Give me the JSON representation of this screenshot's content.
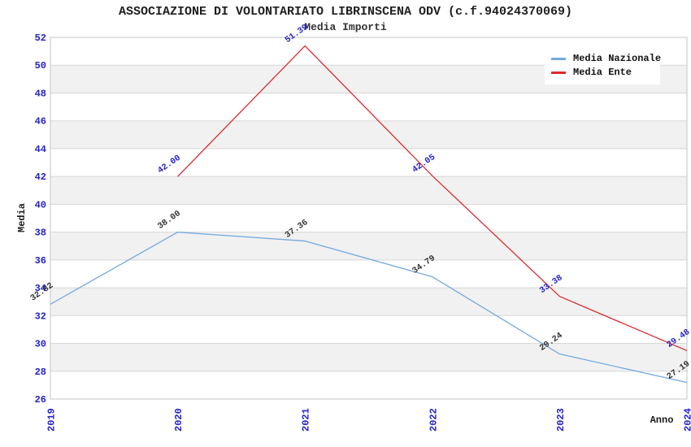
{
  "chart_data": {
    "type": "line",
    "title": "ASSOCIAZIONE DI VOLONTARIATO LIBRINSCENA ODV (c.f.94024370069)",
    "subtitle": "Media Importi",
    "xlabel": "Anno",
    "ylabel": "Media",
    "x_categories": [
      2019,
      2020,
      2021,
      2022,
      2023,
      2024
    ],
    "ylim": [
      26,
      52
    ],
    "ytick_step": 2,
    "grid": "horizontal-bands",
    "legend_position": "top-right",
    "axis_tick_color": "#2222cc",
    "band_colors": [
      "#ffffff",
      "#f1f1f1"
    ],
    "gridline_color": "#d7d7d7",
    "plot_border_color": "#c6c6c6",
    "series": [
      {
        "name": "Media Nazionale",
        "color": "#74a9de",
        "label_color": "#333333",
        "x": [
          2019,
          2020,
          2021,
          2022,
          2023,
          2024
        ],
        "values": [
          32.82,
          38.0,
          37.36,
          34.79,
          29.24,
          27.19
        ],
        "labels": [
          "32.82",
          "38.00",
          "37.36",
          "34.79",
          "29.24",
          "27.19"
        ]
      },
      {
        "name": "Media Ente",
        "color": "#dc2a2a",
        "label_color": "#2222cc",
        "x": [
          2020,
          2021,
          2022,
          2023,
          2024
        ],
        "values": [
          42.0,
          51.39,
          42.05,
          33.38,
          29.48
        ],
        "labels": [
          "42.00",
          "51.39",
          "42.05",
          "33.38",
          "29.48"
        ]
      }
    ]
  }
}
